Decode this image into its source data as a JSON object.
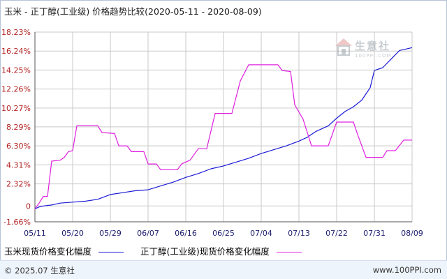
{
  "header": {
    "title": "玉米 - 正丁醇(工业级) 价格趋势比较(2020-05-11 - 2020-08-09)"
  },
  "watermark": {
    "brand": "生意社",
    "url": "100PPI.COM"
  },
  "footer": {
    "copyright": "© 2025.07 生意社",
    "site": "www.100PPI.com"
  },
  "colors": {
    "series1": "#1a1ad6",
    "series2": "#e020e0",
    "grid": "#c9c9c9",
    "axis": "#555555"
  },
  "chart_data": {
    "type": "line",
    "ylim": [
      -1.66,
      18.23
    ],
    "yticks": [
      "18.23%",
      "16.24%",
      "14.25%",
      "12.26%",
      "10.27%",
      "8.29%",
      "6.30%",
      "4.31%",
      "2.32%",
      "0",
      "-1.66%"
    ],
    "ytick_values": [
      18.23,
      16.24,
      14.25,
      12.26,
      10.27,
      8.29,
      6.3,
      4.31,
      2.32,
      0,
      -1.66
    ],
    "xlim": [
      "2020-05-11",
      "2020-08-09"
    ],
    "xtick_labels": [
      "05/11",
      "05/20",
      "05/29",
      "06/07",
      "06/16",
      "06/25",
      "07/04",
      "07/13",
      "07/22",
      "07/31",
      "08/09"
    ],
    "xtick_dates": [
      "2020-05-11",
      "2020-05-20",
      "2020-05-29",
      "2020-06-07",
      "2020-06-16",
      "2020-06-25",
      "2020-07-04",
      "2020-07-13",
      "2020-07-22",
      "2020-07-31",
      "2020-08-09"
    ],
    "grid": true,
    "legend_position": "bottom",
    "series": [
      {
        "name": "玉米现货价格变化幅度",
        "color": "#1a1ad6",
        "points": [
          [
            "2020-05-11",
            -0.3
          ],
          [
            "2020-05-12",
            -0.1
          ],
          [
            "2020-05-13",
            0.0
          ],
          [
            "2020-05-15",
            0.1
          ],
          [
            "2020-05-17",
            0.3
          ],
          [
            "2020-05-20",
            0.4
          ],
          [
            "2020-05-23",
            0.5
          ],
          [
            "2020-05-26",
            0.7
          ],
          [
            "2020-05-29",
            1.2
          ],
          [
            "2020-06-01",
            1.4
          ],
          [
            "2020-06-04",
            1.6
          ],
          [
            "2020-06-07",
            1.7
          ],
          [
            "2020-06-10",
            2.1
          ],
          [
            "2020-06-13",
            2.5
          ],
          [
            "2020-06-16",
            3.0
          ],
          [
            "2020-06-19",
            3.4
          ],
          [
            "2020-06-22",
            3.9
          ],
          [
            "2020-06-25",
            4.2
          ],
          [
            "2020-06-28",
            4.6
          ],
          [
            "2020-07-01",
            5.0
          ],
          [
            "2020-07-04",
            5.5
          ],
          [
            "2020-07-07",
            5.9
          ],
          [
            "2020-07-10",
            6.3
          ],
          [
            "2020-07-13",
            6.8
          ],
          [
            "2020-07-15",
            7.2
          ],
          [
            "2020-07-17",
            7.8
          ],
          [
            "2020-07-20",
            8.4
          ],
          [
            "2020-07-22",
            9.2
          ],
          [
            "2020-07-24",
            9.9
          ],
          [
            "2020-07-26",
            10.4
          ],
          [
            "2020-07-28",
            11.1
          ],
          [
            "2020-07-30",
            12.4
          ],
          [
            "2020-07-31",
            14.2
          ],
          [
            "2020-08-02",
            14.5
          ],
          [
            "2020-08-04",
            15.4
          ],
          [
            "2020-08-06",
            16.3
          ],
          [
            "2020-08-09",
            16.6
          ]
        ]
      },
      {
        "name": "正丁醇(工业级)现货价格变化幅度",
        "color": "#e020e0",
        "points": [
          [
            "2020-05-11",
            -0.3
          ],
          [
            "2020-05-12",
            0.3
          ],
          [
            "2020-05-13",
            1.0
          ],
          [
            "2020-05-14",
            1.0
          ],
          [
            "2020-05-15",
            4.7
          ],
          [
            "2020-05-17",
            4.8
          ],
          [
            "2020-05-18",
            5.1
          ],
          [
            "2020-05-19",
            5.7
          ],
          [
            "2020-05-20",
            5.8
          ],
          [
            "2020-05-21",
            8.4
          ],
          [
            "2020-05-26",
            8.4
          ],
          [
            "2020-05-27",
            7.7
          ],
          [
            "2020-05-30",
            7.6
          ],
          [
            "2020-05-31",
            6.3
          ],
          [
            "2020-06-02",
            6.3
          ],
          [
            "2020-06-03",
            5.7
          ],
          [
            "2020-06-06",
            5.7
          ],
          [
            "2020-06-07",
            4.4
          ],
          [
            "2020-06-09",
            4.4
          ],
          [
            "2020-06-10",
            3.8
          ],
          [
            "2020-06-14",
            3.8
          ],
          [
            "2020-06-15",
            4.4
          ],
          [
            "2020-06-17",
            4.8
          ],
          [
            "2020-06-19",
            6.0
          ],
          [
            "2020-06-21",
            6.0
          ],
          [
            "2020-06-23",
            9.7
          ],
          [
            "2020-06-27",
            9.7
          ],
          [
            "2020-06-29",
            13.1
          ],
          [
            "2020-07-01",
            14.8
          ],
          [
            "2020-07-08",
            14.8
          ],
          [
            "2020-07-09",
            14.2
          ],
          [
            "2020-07-11",
            14.1
          ],
          [
            "2020-07-12",
            10.6
          ],
          [
            "2020-07-14",
            9.1
          ],
          [
            "2020-07-16",
            6.3
          ],
          [
            "2020-07-20",
            6.3
          ],
          [
            "2020-07-22",
            8.8
          ],
          [
            "2020-07-26",
            8.8
          ],
          [
            "2020-07-27",
            7.5
          ],
          [
            "2020-07-29",
            5.1
          ],
          [
            "2020-08-02",
            5.1
          ],
          [
            "2020-08-03",
            5.8
          ],
          [
            "2020-08-05",
            5.8
          ],
          [
            "2020-08-07",
            6.9
          ],
          [
            "2020-08-09",
            6.9
          ]
        ]
      }
    ]
  }
}
